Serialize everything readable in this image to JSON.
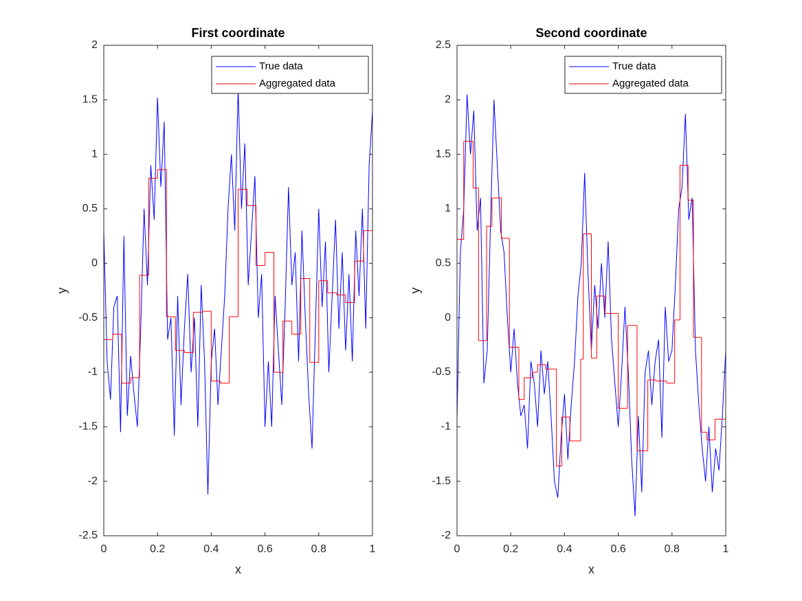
{
  "chart_data": [
    {
      "type": "line",
      "title": "First coordinate",
      "xlabel": "x",
      "ylabel": "y",
      "xlim": [
        0,
        1
      ],
      "ylim": [
        -2.5,
        2
      ],
      "xticks": [
        0,
        0.2,
        0.4,
        0.6,
        0.8,
        1
      ],
      "yticks": [
        -2.5,
        -2,
        -1.5,
        -1,
        -0.5,
        0,
        0.5,
        1,
        1.5,
        2
      ],
      "legend": "northeast",
      "series": [
        {
          "name": "True data",
          "color": "#0000ff",
          "drawstyle": "line",
          "x": [
            0,
            0.0125,
            0.025,
            0.0375,
            0.05,
            0.0625,
            0.075,
            0.0875,
            0.1,
            0.1125,
            0.125,
            0.1375,
            0.15,
            0.1625,
            0.175,
            0.1875,
            0.2,
            0.2125,
            0.225,
            0.2375,
            0.25,
            0.2625,
            0.275,
            0.2875,
            0.3,
            0.3125,
            0.325,
            0.3375,
            0.35,
            0.3625,
            0.375,
            0.3875,
            0.4,
            0.4125,
            0.425,
            0.4375,
            0.45,
            0.4625,
            0.475,
            0.4875,
            0.5,
            0.5125,
            0.525,
            0.5375,
            0.55,
            0.5625,
            0.575,
            0.5875,
            0.6,
            0.6125,
            0.625,
            0.6375,
            0.65,
            0.6625,
            0.675,
            0.6875,
            0.7,
            0.7125,
            0.725,
            0.7375,
            0.75,
            0.7625,
            0.775,
            0.7875,
            0.8,
            0.8125,
            0.825,
            0.8375,
            0.85,
            0.8625,
            0.875,
            0.8875,
            0.9,
            0.9125,
            0.925,
            0.9375,
            0.95,
            0.9625,
            0.975,
            0.9875,
            1
          ],
          "values": [
            0.3,
            -0.9,
            -1.25,
            -0.4,
            -0.3,
            -1.55,
            0.25,
            -1.4,
            -0.85,
            -1.2,
            -1.5,
            -0.6,
            0.5,
            -0.2,
            0.9,
            0.4,
            1.52,
            0.7,
            1.3,
            -0.7,
            -0.5,
            -1.58,
            -0.3,
            -1.3,
            -0.6,
            -0.1,
            -1.0,
            -0.5,
            -1.5,
            -0.2,
            -0.9,
            -2.12,
            -0.9,
            -0.6,
            -1.3,
            -0.8,
            -0.3,
            0.5,
            1.0,
            0.3,
            1.6,
            0.5,
            1.1,
            -0.2,
            0.3,
            0.8,
            -0.5,
            -0.1,
            -1.5,
            -0.9,
            -1.5,
            -0.3,
            -0.8,
            -1.3,
            -0.4,
            0.7,
            -0.2,
            0.1,
            -0.9,
            0.3,
            -0.5,
            -1.2,
            -1.7,
            -0.6,
            0.5,
            -0.4,
            0.2,
            -1.0,
            -0.3,
            0.4,
            -0.6,
            0.1,
            -0.8,
            -0.1,
            -0.9,
            0.3,
            -0.3,
            0.5,
            -0.6,
            0.9,
            1.4
          ]
        },
        {
          "name": "Aggregated data",
          "color": "#ff0000",
          "drawstyle": "steps-post",
          "x": [
            0,
            0.0333,
            0.0667,
            0.1,
            0.1333,
            0.1667,
            0.2,
            0.2333,
            0.2667,
            0.3,
            0.3333,
            0.3667,
            0.4,
            0.4333,
            0.4667,
            0.5,
            0.5333,
            0.5667,
            0.6,
            0.6333,
            0.6667,
            0.7,
            0.7333,
            0.7667,
            0.8,
            0.8333,
            0.8667,
            0.9,
            0.9333,
            0.9667
          ],
          "values": [
            -0.7,
            -0.65,
            -1.1,
            -1.05,
            -0.11,
            0.78,
            0.86,
            -0.49,
            -0.8,
            -0.82,
            -0.45,
            -0.44,
            -1.08,
            -1.1,
            -0.49,
            0.68,
            0.53,
            -0.02,
            0.1,
            -1.0,
            -0.53,
            -0.65,
            -0.14,
            -0.91,
            -0.16,
            -0.27,
            -0.29,
            -0.36,
            0.02,
            0.3
          ]
        }
      ]
    },
    {
      "type": "line",
      "title": "Second coordinate",
      "xlabel": "x",
      "ylabel": "y",
      "xlim": [
        0,
        1
      ],
      "ylim": [
        -2,
        2.5
      ],
      "xticks": [
        0,
        0.2,
        0.4,
        0.6,
        0.8,
        1
      ],
      "yticks": [
        -2,
        -1.5,
        -1,
        -0.5,
        0,
        0.5,
        1,
        1.5,
        2,
        2.5
      ],
      "legend": "northeast",
      "series": [
        {
          "name": "True data",
          "color": "#0000ff",
          "drawstyle": "line",
          "x": [
            0,
            0.0125,
            0.025,
            0.0375,
            0.05,
            0.0625,
            0.075,
            0.0875,
            0.1,
            0.1125,
            0.125,
            0.1375,
            0.15,
            0.1625,
            0.175,
            0.1875,
            0.2,
            0.2125,
            0.225,
            0.2375,
            0.25,
            0.2625,
            0.275,
            0.2875,
            0.3,
            0.3125,
            0.325,
            0.3375,
            0.35,
            0.3625,
            0.375,
            0.3875,
            0.4,
            0.4125,
            0.425,
            0.4375,
            0.45,
            0.4625,
            0.475,
            0.4875,
            0.5,
            0.5125,
            0.525,
            0.5375,
            0.55,
            0.5625,
            0.575,
            0.5875,
            0.6,
            0.6125,
            0.625,
            0.6375,
            0.65,
            0.6625,
            0.675,
            0.6875,
            0.7,
            0.7125,
            0.725,
            0.7375,
            0.75,
            0.7625,
            0.775,
            0.7875,
            0.8,
            0.8125,
            0.825,
            0.8375,
            0.85,
            0.8625,
            0.875,
            0.8875,
            0.9,
            0.9125,
            0.925,
            0.9375,
            0.95,
            0.9625,
            0.975,
            0.9875,
            1
          ],
          "values": [
            -0.93,
            0.6,
            1.0,
            2.05,
            1.5,
            1.9,
            0.8,
            1.1,
            -0.6,
            -0.3,
            0.9,
            2.0,
            1.4,
            0.8,
            0.6,
            0.0,
            -0.5,
            -0.1,
            -0.6,
            -0.9,
            -0.8,
            -1.2,
            -0.4,
            -0.6,
            -1.0,
            -0.3,
            -0.7,
            -0.4,
            -0.9,
            -1.5,
            -1.65,
            -1.1,
            -0.7,
            -1.3,
            -0.8,
            -0.4,
            0.2,
            0.5,
            1.33,
            0.4,
            -0.3,
            0.3,
            -0.1,
            0.5,
            0.0,
            0.7,
            -0.2,
            -0.6,
            -1.0,
            -0.5,
            0.1,
            -0.5,
            -1.3,
            -1.82,
            -0.9,
            -1.6,
            -0.5,
            -0.3,
            -0.8,
            -0.4,
            -0.2,
            -1.1,
            0.1,
            -0.4,
            -0.3,
            0.3,
            1.0,
            1.2,
            1.87,
            0.9,
            1.1,
            -0.3,
            -0.8,
            -1.2,
            -1.5,
            -1.0,
            -1.6,
            -1.2,
            -1.4,
            -0.9,
            -0.3
          ]
        },
        {
          "name": "Aggregated data",
          "color": "#ff0000",
          "drawstyle": "steps-post",
          "x": [
            0,
            0.025,
            0.06,
            0.08,
            0.11,
            0.13,
            0.165,
            0.195,
            0.23,
            0.25,
            0.28,
            0.3,
            0.33,
            0.37,
            0.39,
            0.42,
            0.46,
            0.47,
            0.5,
            0.52,
            0.55,
            0.6,
            0.635,
            0.67,
            0.71,
            0.74,
            0.78,
            0.81,
            0.83,
            0.86,
            0.88,
            0.91,
            0.93,
            0.96
          ],
          "values": [
            0.72,
            1.62,
            1.19,
            -0.21,
            0.84,
            1.1,
            0.73,
            -0.27,
            -0.75,
            -0.55,
            -0.5,
            -0.43,
            -0.47,
            -1.36,
            -0.91,
            -1.13,
            -0.38,
            0.77,
            -0.37,
            0.2,
            0.04,
            -0.83,
            -0.07,
            -1.22,
            -0.57,
            -0.58,
            -0.6,
            -0.02,
            1.4,
            1.08,
            -0.18,
            -1.05,
            -1.12,
            -0.93
          ]
        }
      ]
    }
  ]
}
